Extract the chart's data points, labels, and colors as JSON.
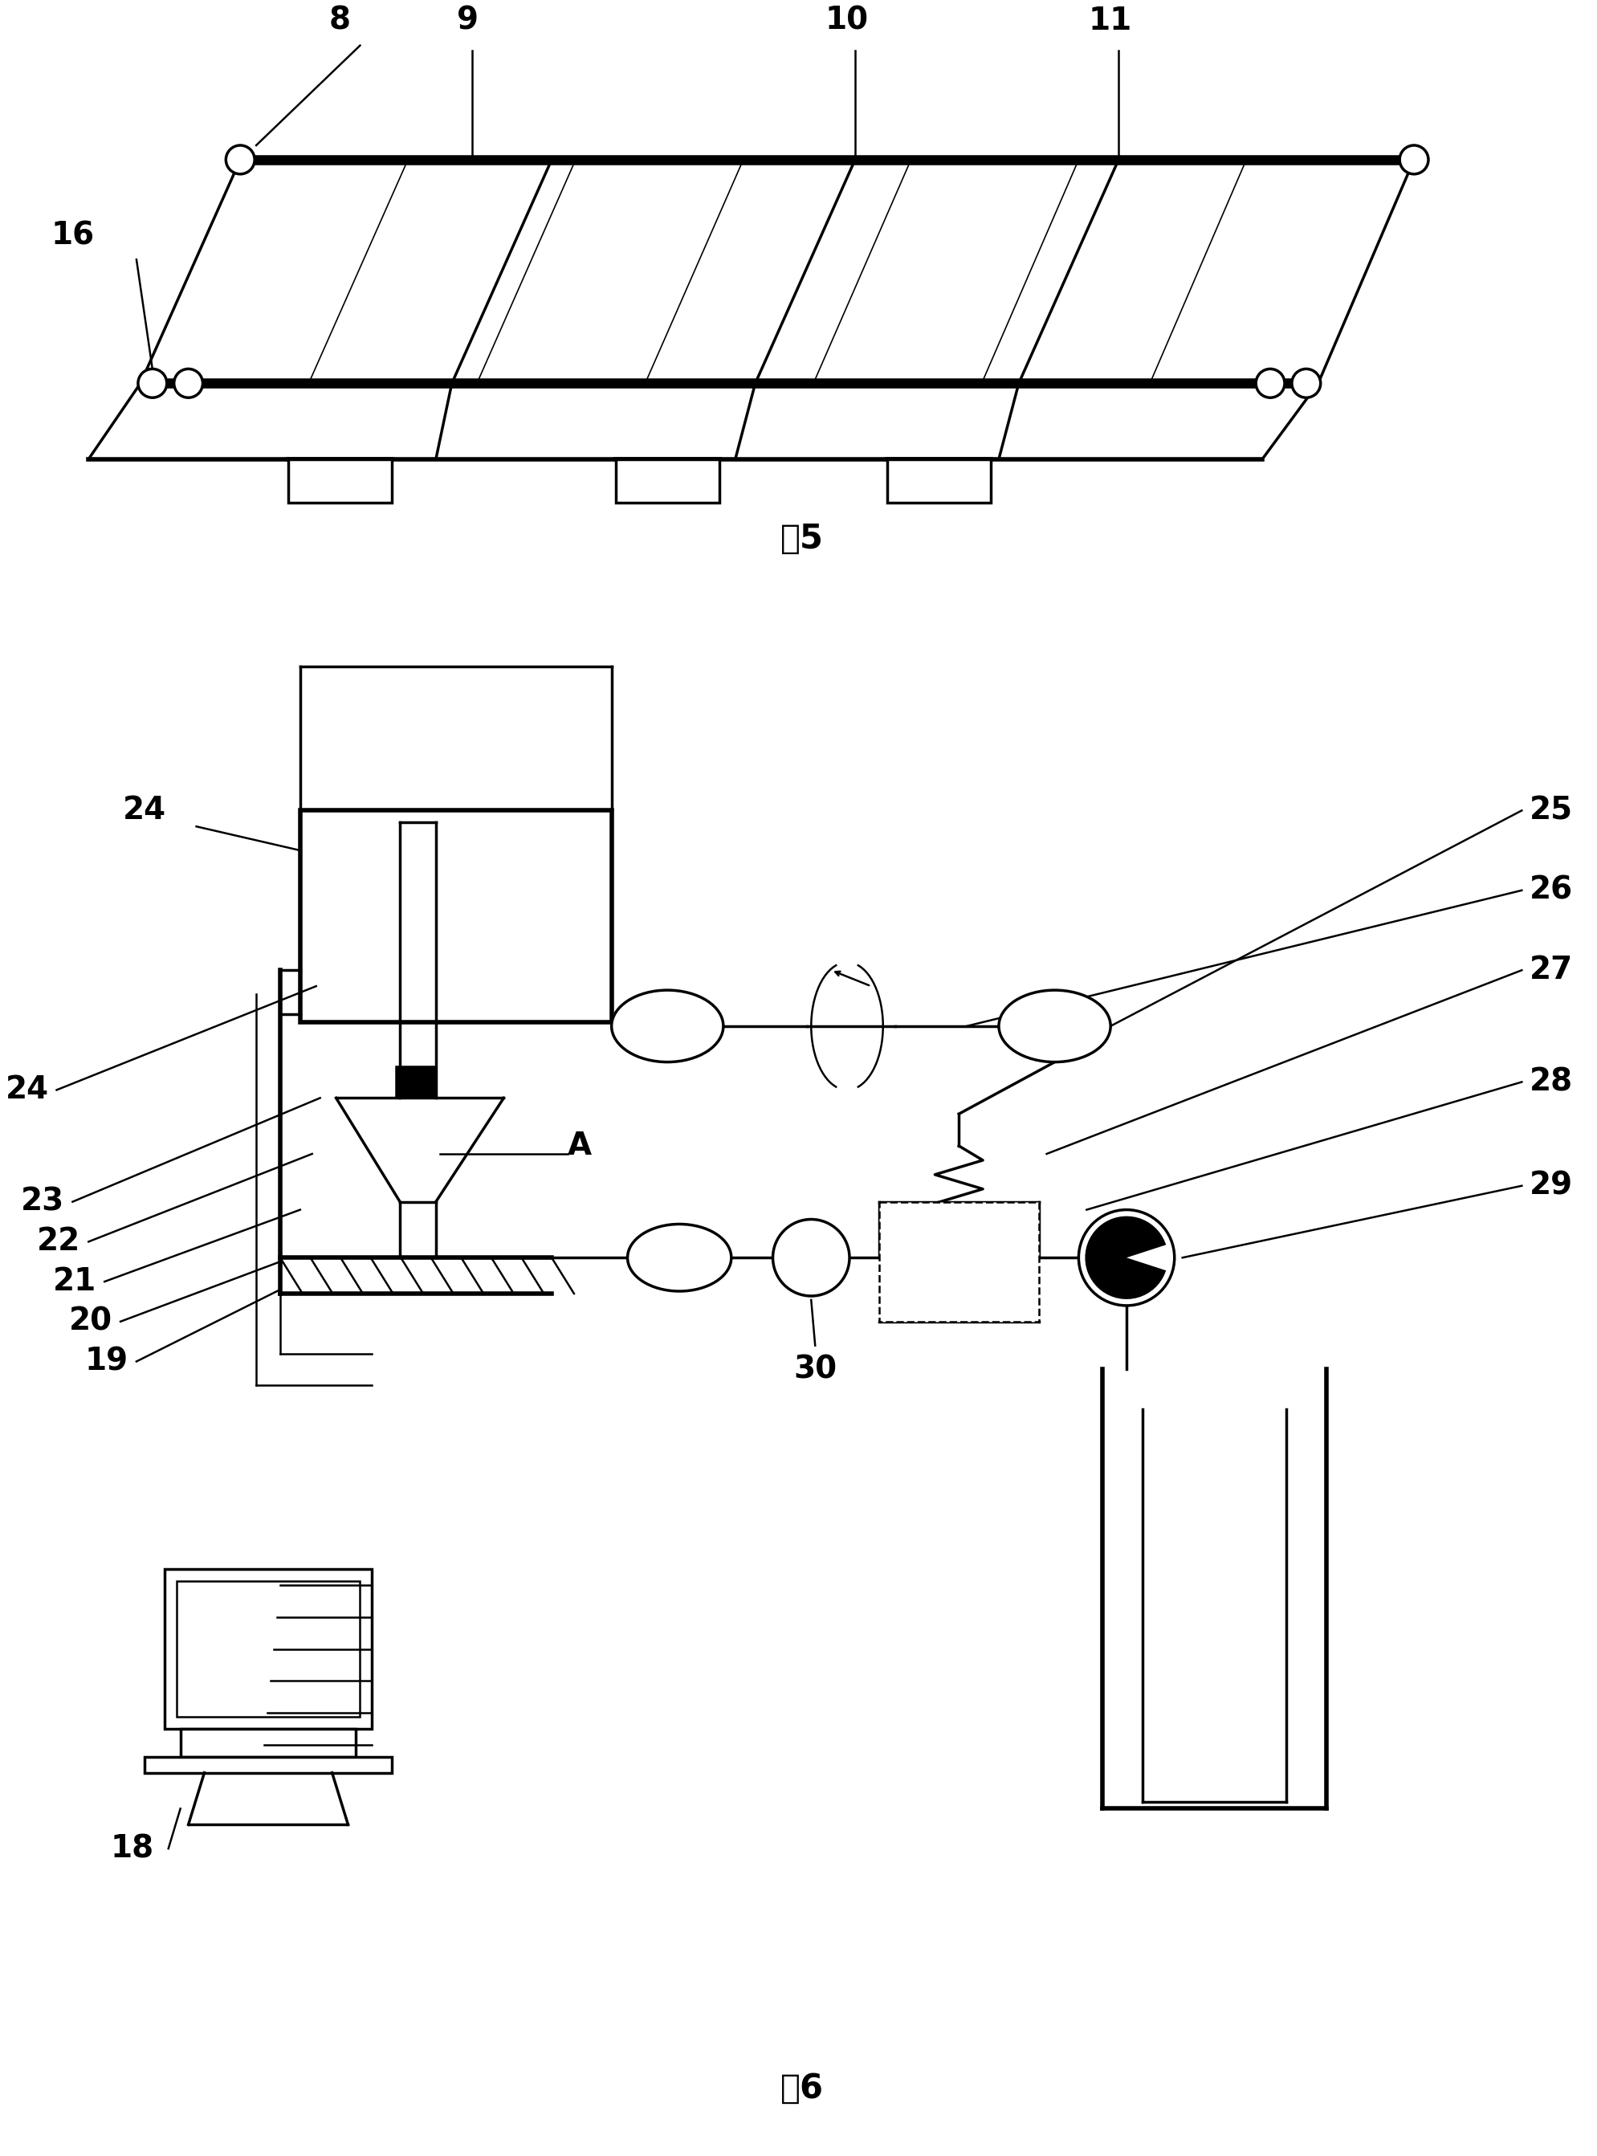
{
  "fig_width": 19.89,
  "fig_height": 26.85,
  "bg_color": "#ffffff",
  "fig5_label": "图5",
  "fig6_label": "图6",
  "label_fontsize": 30,
  "num_fontsize": 28,
  "A_fontsize": 28,
  "P_fontsize": 22
}
